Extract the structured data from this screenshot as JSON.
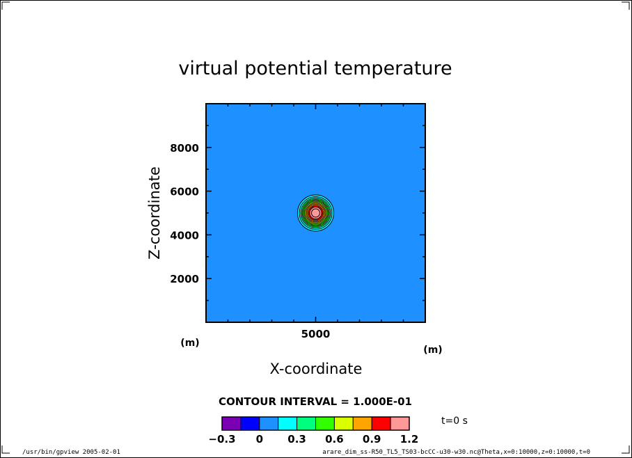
{
  "chart_data": {
    "type": "contour",
    "title": "virtual potential temperature",
    "xlabel": "X-coordinate",
    "ylabel": "Z-coordinate",
    "x_unit": "(m)",
    "y_unit": "(m)",
    "xlim": [
      0,
      10000
    ],
    "ylim": [
      0,
      10000
    ],
    "x_ticks": [
      5000
    ],
    "y_ticks": [
      2000,
      4000,
      6000,
      8000
    ],
    "background_color": "#1E90FF",
    "bubble": {
      "center_x": 5000,
      "center_z": 5000,
      "peak": 1.2
    },
    "contour_levels": [
      0.1,
      0.2,
      0.3,
      0.4,
      0.5,
      0.6,
      0.7,
      0.8,
      0.9,
      1.0,
      1.1
    ],
    "contour_interval_text": "CONTOUR INTERVAL = 1.000E-01",
    "colorbar": {
      "boundaries": [
        -0.3,
        -0.15,
        0,
        0.15,
        0.3,
        0.45,
        0.6,
        0.75,
        0.9,
        1.05,
        1.2
      ],
      "colors": [
        "#7B00B4",
        "#0000FF",
        "#1E90FF",
        "#00FFFF",
        "#00FF7F",
        "#32FF00",
        "#DCFF00",
        "#FFA500",
        "#FF0000",
        "#FF9999"
      ],
      "labels": [
        "-0.3",
        "0",
        "0.3",
        "0.6",
        "0.9",
        "1.2"
      ]
    },
    "time_label": "t=0 s"
  },
  "footer": {
    "left": "/usr/bin/gpview  2005-02-01",
    "right": "arare_dim_ss-R50_TL5_TS03-bcCC-u30-w30.nc@Theta,x=0:10000,z=0:10000,t=0"
  }
}
